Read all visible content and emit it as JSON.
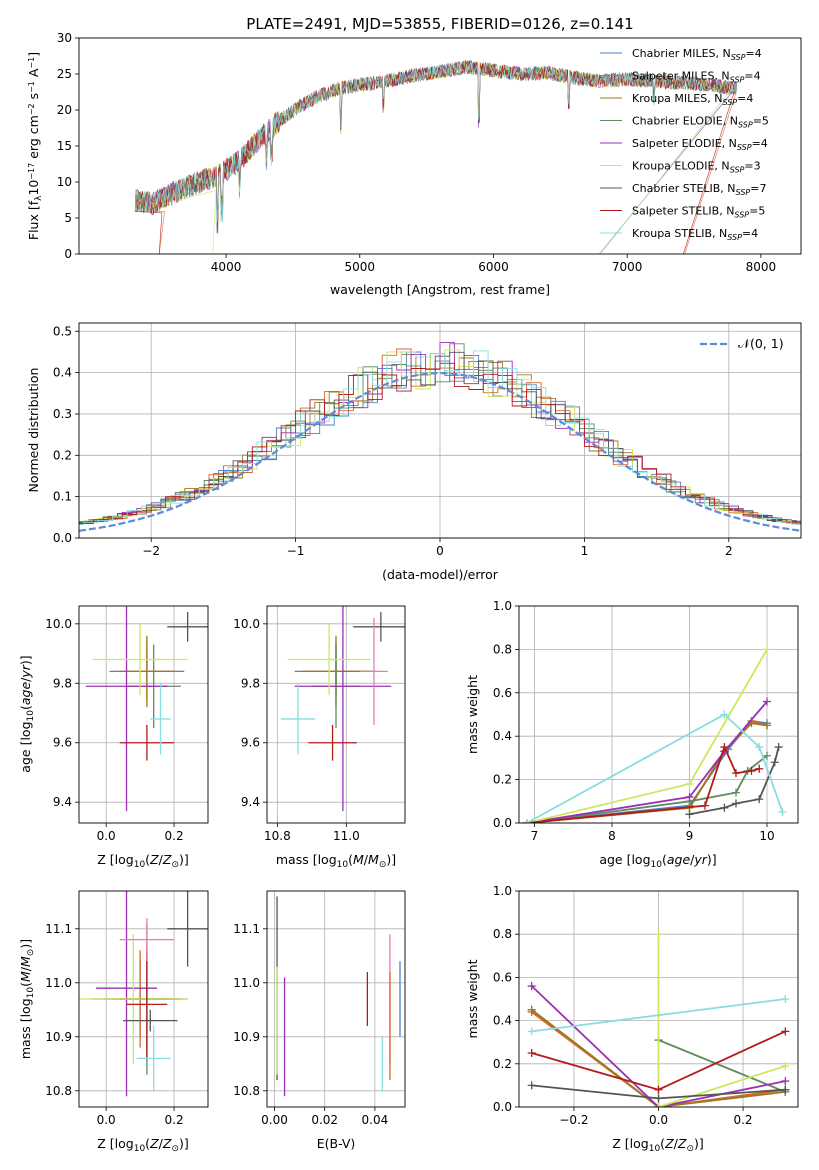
{
  "chart_data": [
    {
      "type": "line",
      "title": "PLATE=2491, MJD=53855, FIBERID=0126, z=0.141",
      "xlabel": "wavelength [Angstrom, rest frame]",
      "ylabel": "Flux [f",
      "ylabel_mid": "10",
      "ylabel_end": " erg cm",
      "ylabel_tail": " s",
      "ylabel_last": " A",
      "xlim": [
        2900,
        8300
      ],
      "ylim": [
        0,
        30
      ],
      "xticks": [
        "4000",
        "5000",
        "6000",
        "7000",
        "8000"
      ],
      "yticks": [
        "0",
        "5",
        "10",
        "15",
        "20",
        "25",
        "30"
      ],
      "series": [
        {
          "name": "Chabrier MILES, N",
          "nssp": "=4",
          "color": "#4b84c4"
        },
        {
          "name": "Salpeter MILES, N",
          "nssp": "=4",
          "color": "#e0642a"
        },
        {
          "name": "Kroupa MILES, N",
          "nssp": "=4",
          "color": "#9b7a1a"
        },
        {
          "name": "Chabrier ELODIE, N",
          "nssp": "=5",
          "color": "#5e8c5e"
        },
        {
          "name": "Salpeter ELODIE, N",
          "nssp": "=4",
          "color": "#9b2fb5"
        },
        {
          "name": "Kroupa ELODIE, N",
          "nssp": "=3",
          "color": "#cbe85e"
        },
        {
          "name": "Chabrier STELIB, N",
          "nssp": "=7",
          "color": "#555555"
        },
        {
          "name": "Salpeter STELIB, N",
          "nssp": "=5",
          "color": "#b31a1a"
        },
        {
          "name": "Kroupa STELIB, N",
          "nssp": "=4",
          "color": "#88dde0"
        }
      ],
      "continuum": [
        [
          3320,
          7.5
        ],
        [
          3450,
          7
        ],
        [
          3600,
          8.5
        ],
        [
          3800,
          10
        ],
        [
          3950,
          11
        ],
        [
          4100,
          13
        ],
        [
          4250,
          16
        ],
        [
          4400,
          18.5
        ],
        [
          4550,
          20.5
        ],
        [
          4700,
          22
        ],
        [
          4850,
          23
        ],
        [
          5000,
          23.5
        ],
        [
          5200,
          24
        ],
        [
          5400,
          24.8
        ],
        [
          5600,
          25.3
        ],
        [
          5800,
          26
        ],
        [
          6000,
          25.5
        ],
        [
          6200,
          25
        ],
        [
          6400,
          25.2
        ],
        [
          6600,
          24.5
        ],
        [
          6800,
          24
        ],
        [
          7000,
          24.3
        ],
        [
          7200,
          24
        ],
        [
          7400,
          23.8
        ],
        [
          7600,
          23.5
        ],
        [
          7800,
          23
        ]
      ]
    },
    {
      "type": "line",
      "xlabel": "(data-model)/error",
      "ylabel": "Normed distribution",
      "xlim": [
        -2.5,
        2.5
      ],
      "ylim": [
        0,
        0.52
      ],
      "xticks": [
        "−2",
        "−1",
        "0",
        "1",
        "2"
      ],
      "yticks": [
        "0.0",
        "0.1",
        "0.2",
        "0.3",
        "0.4",
        "0.5"
      ],
      "legend": "𝒩(0, 1)",
      "gauss_color": "#5b8bd9"
    },
    {
      "type": "scatter",
      "xlabel": "Z [log",
      "ylabel": "age  [log",
      "xlim": [
        -0.08,
        0.3
      ],
      "ylim": [
        9.33,
        10.06
      ],
      "xticks": [
        "0.0",
        "0.2"
      ],
      "yticks": [
        "9.4",
        "9.6",
        "9.8",
        "10.0"
      ],
      "points": [
        {
          "x": 0.12,
          "y": 9.84,
          "xerr": 0.11,
          "yerr": 0.06,
          "c": "#4b84c4"
        },
        {
          "x": 0.12,
          "y": 9.84,
          "xerr": 0.09,
          "yerr": 0.1,
          "c": "#e0642a"
        },
        {
          "x": 0.12,
          "y": 9.84,
          "xerr": 0.08,
          "yerr": 0.12,
          "c": "#9b7a1a"
        },
        {
          "x": 0.14,
          "y": 9.79,
          "xerr": 0.08,
          "yerr": 0.14,
          "c": "#5e8c5e"
        },
        {
          "x": 0.06,
          "y": 9.79,
          "xerr": 0.12,
          "yerr": 0.42,
          "c": "#9b2fb5"
        },
        {
          "x": 0.1,
          "y": 9.88,
          "xerr": 0.14,
          "yerr": 0.12,
          "c": "#cbe85e"
        },
        {
          "x": 0.24,
          "y": 9.99,
          "xerr": 0.06,
          "yerr": 0.05,
          "c": "#555555"
        },
        {
          "x": 0.12,
          "y": 9.6,
          "xerr": 0.08,
          "yerr": 0.06,
          "c": "#b31a1a"
        },
        {
          "x": 0.16,
          "y": 9.68,
          "xerr": 0.03,
          "yerr": 0.12,
          "c": "#88dde0"
        }
      ]
    },
    {
      "type": "scatter",
      "xlabel": "mass [log",
      "ylabel": "",
      "xlim": [
        10.77,
        11.17
      ],
      "ylim": [
        9.33,
        10.06
      ],
      "xticks": [
        "10.8",
        "11.0"
      ],
      "yticks": [
        "9.4",
        "9.6",
        "9.8",
        "10.0"
      ],
      "points": [
        {
          "x": 10.97,
          "y": 9.84,
          "xerr": 0.12,
          "yerr": 0.06,
          "c": "#4b84c4"
        },
        {
          "x": 10.97,
          "y": 9.84,
          "xerr": 0.1,
          "yerr": 0.1,
          "c": "#e0642a"
        },
        {
          "x": 10.97,
          "y": 9.84,
          "xerr": 0.1,
          "yerr": 0.12,
          "c": "#9b7a1a"
        },
        {
          "x": 10.97,
          "y": 9.79,
          "xerr": 0.07,
          "yerr": 0.14,
          "c": "#5e8c5e"
        },
        {
          "x": 10.99,
          "y": 9.79,
          "xerr": 0.14,
          "yerr": 0.42,
          "c": "#9b2fb5"
        },
        {
          "x": 10.95,
          "y": 9.88,
          "xerr": 0.12,
          "yerr": 0.12,
          "c": "#cbe85e"
        },
        {
          "x": 11.1,
          "y": 9.99,
          "xerr": 0.08,
          "yerr": 0.05,
          "c": "#555555"
        },
        {
          "x": 10.96,
          "y": 9.6,
          "xerr": 0.07,
          "yerr": 0.06,
          "c": "#b31a1a"
        },
        {
          "x": 10.86,
          "y": 9.68,
          "xerr": 0.05,
          "yerr": 0.12,
          "c": "#88dde0"
        },
        {
          "x": 11.08,
          "y": 9.84,
          "xerr": 0.04,
          "yerr": 0.18,
          "c": "#e87bb0"
        }
      ]
    },
    {
      "type": "line",
      "xlabel": "age  [log",
      "ylabel": "mass weight",
      "xlim": [
        6.8,
        10.4
      ],
      "ylim": [
        0,
        1
      ],
      "xticks": [
        "7",
        "8",
        "9",
        "10"
      ],
      "yticks": [
        "0.0",
        "0.2",
        "0.4",
        "0.6",
        "0.8",
        "1.0"
      ],
      "series": [
        {
          "c": "#4b84c4",
          "pts": [
            [
              6.9,
              0
            ],
            [
              9.0,
              0.08
            ],
            [
              9.5,
              0.34
            ],
            [
              9.8,
              0.47
            ],
            [
              10.0,
              0.46
            ]
          ]
        },
        {
          "c": "#e0642a",
          "pts": [
            [
              6.9,
              0
            ],
            [
              9.0,
              0.07
            ],
            [
              9.45,
              0.33
            ],
            [
              9.8,
              0.47
            ],
            [
              10.0,
              0.45
            ]
          ]
        },
        {
          "c": "#9b7a1a",
          "pts": [
            [
              6.9,
              0
            ],
            [
              9.0,
              0.07
            ],
            [
              9.45,
              0.33
            ],
            [
              9.8,
              0.46
            ],
            [
              10.0,
              0.45
            ]
          ]
        },
        {
          "c": "#5e8c5e",
          "pts": [
            [
              6.9,
              0
            ],
            [
              9.0,
              0.1
            ],
            [
              9.6,
              0.14
            ],
            [
              9.75,
              0.24
            ],
            [
              10.0,
              0.31
            ]
          ]
        },
        {
          "c": "#9b2fb5",
          "pts": [
            [
              6.9,
              0
            ],
            [
              9.0,
              0.12
            ],
            [
              9.45,
              0.33
            ],
            [
              10.0,
              0.56
            ]
          ]
        },
        {
          "c": "#cbe85e",
          "pts": [
            [
              6.9,
              0
            ],
            [
              9.0,
              0.18
            ],
            [
              10.0,
              0.8
            ]
          ]
        },
        {
          "c": "#555555",
          "pts": [
            [
              9.0,
              0.04
            ],
            [
              9.45,
              0.07
            ],
            [
              9.6,
              0.09
            ],
            [
              9.9,
              0.11
            ],
            [
              10.1,
              0.28
            ],
            [
              10.15,
              0.35
            ]
          ]
        },
        {
          "c": "#b31a1a",
          "pts": [
            [
              6.9,
              0
            ],
            [
              9.2,
              0.08
            ],
            [
              9.45,
              0.35
            ],
            [
              9.6,
              0.23
            ],
            [
              9.8,
              0.24
            ],
            [
              9.9,
              0.25
            ]
          ]
        },
        {
          "c": "#88dde0",
          "pts": [
            [
              6.9,
              0
            ],
            [
              9.45,
              0.5
            ],
            [
              9.9,
              0.35
            ],
            [
              10.2,
              0.05
            ]
          ]
        }
      ]
    },
    {
      "type": "scatter",
      "xlabel": "Z [log",
      "ylabel": "mass [log",
      "xlim": [
        -0.08,
        0.3
      ],
      "ylim": [
        10.77,
        11.17
      ],
      "xticks": [
        "0.0",
        "0.2"
      ],
      "yticks": [
        "10.8",
        "10.9",
        "11.0",
        "11.1"
      ],
      "points": [
        {
          "x": 0.1,
          "y": 10.97,
          "xerr": 0.14,
          "yerr": 0.07,
          "c": "#4b84c4"
        },
        {
          "x": 0.1,
          "y": 10.97,
          "xerr": 0.11,
          "yerr": 0.09,
          "c": "#e0642a"
        },
        {
          "x": 0.12,
          "y": 10.97,
          "xerr": 0.1,
          "yerr": 0.1,
          "c": "#9b7a1a"
        },
        {
          "x": 0.12,
          "y": 10.97,
          "xerr": 0.08,
          "yerr": 0.14,
          "c": "#5e8c5e"
        },
        {
          "x": 0.06,
          "y": 10.99,
          "xerr": 0.09,
          "yerr": 0.2,
          "c": "#9b2fb5"
        },
        {
          "x": 0.08,
          "y": 10.97,
          "xerr": 0.16,
          "yerr": 0.12,
          "c": "#cbe85e"
        },
        {
          "x": 0.24,
          "y": 11.1,
          "xerr": 0.06,
          "yerr": 0.07,
          "c": "#555555"
        },
        {
          "x": 0.12,
          "y": 10.96,
          "xerr": 0.06,
          "yerr": 0.1,
          "c": "#b31a1a"
        },
        {
          "x": 0.14,
          "y": 10.86,
          "xerr": 0.05,
          "yerr": 0.06,
          "c": "#88dde0"
        },
        {
          "x": 0.12,
          "y": 11.08,
          "xerr": 0.08,
          "yerr": 0.04,
          "c": "#e87bb0"
        },
        {
          "x": 0.13,
          "y": 10.93,
          "xerr": 0.08,
          "yerr": 0.02,
          "c": "#555555"
        }
      ]
    },
    {
      "type": "scatter",
      "xlabel": "E(B-V)",
      "ylabel": "",
      "xlim": [
        -0.003,
        0.052
      ],
      "ylim": [
        10.77,
        11.17
      ],
      "xticks": [
        "0.00",
        "0.02",
        "0.04"
      ],
      "yticks": [
        "10.8",
        "10.9",
        "11.0",
        "11.1"
      ],
      "points": [
        {
          "x": 0.001,
          "y": 10.99,
          "yerr": 0.17,
          "c": "#555555"
        },
        {
          "x": 0.001,
          "y": 10.93,
          "yerr": 0.1,
          "c": "#cbe85e"
        },
        {
          "x": 0.004,
          "y": 10.9,
          "yerr": 0.11,
          "c": "#9b2fb5"
        },
        {
          "x": 0.037,
          "y": 10.97,
          "yerr": 0.05,
          "c": "#b31a1a"
        },
        {
          "x": 0.043,
          "y": 10.85,
          "yerr": 0.05,
          "c": "#88dde0"
        },
        {
          "x": 0.046,
          "y": 10.97,
          "yerr": 0.12,
          "c": "#e87bb0"
        },
        {
          "x": 0.046,
          "y": 10.92,
          "yerr": 0.1,
          "c": "#e0642a"
        },
        {
          "x": 0.05,
          "y": 10.97,
          "yerr": 0.07,
          "c": "#4b84c4"
        }
      ]
    },
    {
      "type": "line",
      "xlabel": "Z [log",
      "ylabel": "mass weight",
      "xlim": [
        -0.33,
        0.33
      ],
      "ylim": [
        0,
        1
      ],
      "xticks": [
        "−0.2",
        "0.0",
        "0.2"
      ],
      "yticks": [
        "0.0",
        "0.2",
        "0.4",
        "0.6",
        "0.8",
        "1.0"
      ],
      "series": [
        {
          "c": "#4b84c4",
          "pts": [
            [
              -0.3,
              0.45
            ],
            [
              0,
              0.0
            ],
            [
              0.3,
              0.08
            ]
          ]
        },
        {
          "c": "#e0642a",
          "pts": [
            [
              -0.3,
              0.44
            ],
            [
              0,
              0.0
            ],
            [
              0.3,
              0.08
            ]
          ]
        },
        {
          "c": "#9b7a1a",
          "pts": [
            [
              -0.3,
              0.45
            ],
            [
              0,
              0.0
            ],
            [
              0.3,
              0.07
            ]
          ]
        },
        {
          "c": "#5e8c5e",
          "pts": [
            [
              0,
              0.31
            ],
            [
              0.3,
              0.07
            ]
          ]
        },
        {
          "c": "#9b2fb5",
          "pts": [
            [
              -0.3,
              0.56
            ],
            [
              0,
              0.0
            ],
            [
              0.3,
              0.12
            ]
          ]
        },
        {
          "c": "#cbe85e",
          "pts": [
            [
              0,
              0.8
            ],
            [
              0,
              0.0
            ],
            [
              0.3,
              0.19
            ]
          ]
        },
        {
          "c": "#555555",
          "pts": [
            [
              -0.3,
              0.1
            ],
            [
              0,
              0.04
            ],
            [
              0.3,
              0.08
            ]
          ]
        },
        {
          "c": "#b31a1a",
          "pts": [
            [
              -0.3,
              0.25
            ],
            [
              0,
              0.08
            ],
            [
              0.3,
              0.35
            ]
          ]
        },
        {
          "c": "#88dde0",
          "pts": [
            [
              -0.3,
              0.35
            ],
            [
              0.3,
              0.5
            ]
          ]
        }
      ]
    }
  ]
}
